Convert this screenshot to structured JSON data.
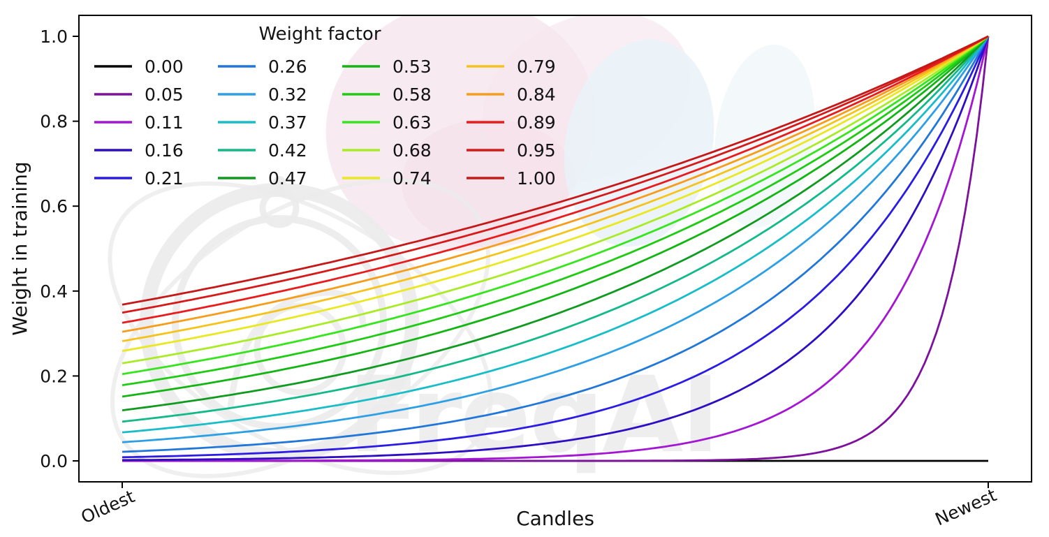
{
  "figure": {
    "background_color": "#ffffff",
    "watermark": {
      "brand_text": "FreqAI",
      "logo_color": "#ebebeb",
      "leaf_pink_color": "#f6e5ee",
      "leaf_blue_color": "#e9f2f8"
    }
  },
  "chart_data": {
    "type": "line",
    "title": "",
    "xlabel": "Candles",
    "ylabel": "Weight in training",
    "x_tick_labels": [
      "Oldest",
      "Newest"
    ],
    "y_tick_labels": [
      "0.0",
      "0.2",
      "0.4",
      "0.6",
      "0.8",
      "1.0"
    ],
    "ylim": [
      -0.05,
      1.05
    ],
    "grid": false,
    "legend": {
      "title": "Weight factor",
      "position": "upper-left",
      "columns": 4,
      "rows": 5
    },
    "curve_formula": "weight(x) = exp(-(1 - x) / weight_factor), x normalized from 0 (oldest candle) to 1 (newest candle); weight_factor = 0.00 plots as constant 0",
    "series": [
      {
        "label": "0.00",
        "factor": 0.0,
        "color": "#000000",
        "weight_at_oldest": 0.0,
        "weight_at_newest": 0.0
      },
      {
        "label": "0.05",
        "factor": 0.05,
        "color": "#7e109e",
        "weight_at_oldest": 0.0,
        "weight_at_newest": 1.0
      },
      {
        "label": "0.11",
        "factor": 0.11,
        "color": "#a316d2",
        "weight_at_oldest": 0.0001,
        "weight_at_newest": 1.0
      },
      {
        "label": "0.16",
        "factor": 0.16,
        "color": "#2e0dc3",
        "weight_at_oldest": 0.0019,
        "weight_at_newest": 1.0
      },
      {
        "label": "0.21",
        "factor": 0.21,
        "color": "#2a1ce4",
        "weight_at_oldest": 0.0086,
        "weight_at_newest": 1.0
      },
      {
        "label": "0.26",
        "factor": 0.26,
        "color": "#2177d9",
        "weight_at_oldest": 0.0214,
        "weight_at_newest": 1.0
      },
      {
        "label": "0.32",
        "factor": 0.32,
        "color": "#2d9fe5",
        "weight_at_oldest": 0.0439,
        "weight_at_newest": 1.0
      },
      {
        "label": "0.37",
        "factor": 0.37,
        "color": "#18bdc8",
        "weight_at_oldest": 0.067,
        "weight_at_newest": 1.0
      },
      {
        "label": "0.42",
        "factor": 0.42,
        "color": "#14b98a",
        "weight_at_oldest": 0.0923,
        "weight_at_newest": 1.0
      },
      {
        "label": "0.47",
        "factor": 0.47,
        "color": "#109a1f",
        "weight_at_oldest": 0.1192,
        "weight_at_newest": 1.0
      },
      {
        "label": "0.53",
        "factor": 0.53,
        "color": "#13b513",
        "weight_at_oldest": 0.1516,
        "weight_at_newest": 1.0
      },
      {
        "label": "0.58",
        "factor": 0.58,
        "color": "#1fcb13",
        "weight_at_oldest": 0.1784,
        "weight_at_newest": 1.0
      },
      {
        "label": "0.63",
        "factor": 0.63,
        "color": "#36e51d",
        "weight_at_oldest": 0.2044,
        "weight_at_newest": 1.0
      },
      {
        "label": "0.68",
        "factor": 0.68,
        "color": "#a9eb26",
        "weight_at_oldest": 0.2296,
        "weight_at_newest": 1.0
      },
      {
        "label": "0.74",
        "factor": 0.74,
        "color": "#e9e822",
        "weight_at_oldest": 0.2588,
        "weight_at_newest": 1.0
      },
      {
        "label": "0.79",
        "factor": 0.79,
        "color": "#f6c31d",
        "weight_at_oldest": 0.2823,
        "weight_at_newest": 1.0
      },
      {
        "label": "0.84",
        "factor": 0.84,
        "color": "#f69d1c",
        "weight_at_oldest": 0.3042,
        "weight_at_newest": 1.0
      },
      {
        "label": "0.89",
        "factor": 0.89,
        "color": "#e81c1c",
        "weight_at_oldest": 0.325,
        "weight_at_newest": 1.0
      },
      {
        "label": "0.95",
        "factor": 0.95,
        "color": "#d61a1a",
        "weight_at_oldest": 0.349,
        "weight_at_newest": 1.0
      },
      {
        "label": "1.00",
        "factor": 1.0,
        "color": "#c51818",
        "weight_at_oldest": 0.3679,
        "weight_at_newest": 1.0
      }
    ]
  }
}
